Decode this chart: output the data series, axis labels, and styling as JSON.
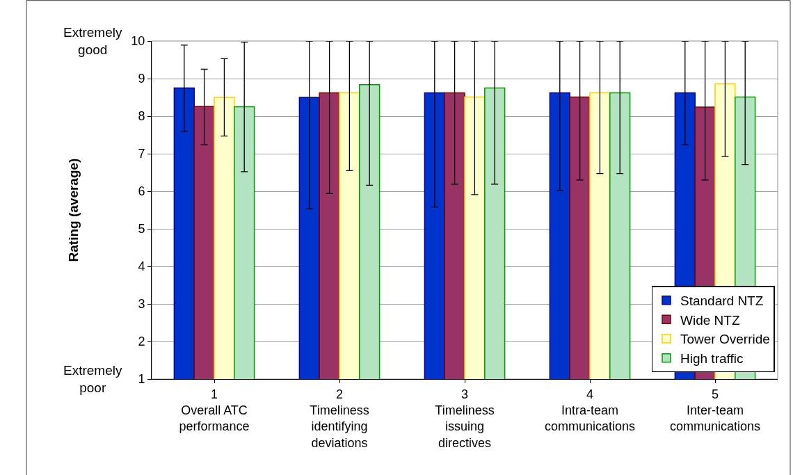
{
  "chart_data": {
    "type": "bar",
    "ylabel": "Rating (average)",
    "categories": [
      "1\nOverall ATC\nperformance",
      "2\nTimeliness\nidentifying\ndeviations",
      "3\nTimeliness\nissuing\ndirectives",
      "4\nIntra-team\ncommunications",
      "5\nInter-team\ncommunications"
    ],
    "series": [
      {
        "name": "Standard NTZ",
        "color": "#0033cc",
        "values": [
          8.75,
          8.5,
          8.62,
          8.62,
          8.62
        ],
        "errors": [
          [
            7.6,
            9.89
          ],
          [
            5.53,
            10
          ],
          [
            5.58,
            10
          ],
          [
            6.02,
            10
          ],
          [
            7.24,
            10
          ]
        ]
      },
      {
        "name": "Wide NTZ",
        "color": "#993366",
        "values": [
          8.26,
          8.62,
          8.62,
          8.51,
          8.24
        ],
        "errors": [
          [
            7.24,
            9.25
          ],
          [
            5.94,
            10
          ],
          [
            6.19,
            10
          ],
          [
            6.3,
            10
          ],
          [
            6.3,
            10
          ]
        ]
      },
      {
        "name": "Tower Override",
        "color": "#ffffcc",
        "values": [
          8.5,
          8.62,
          8.51,
          8.62,
          8.86
        ],
        "errors": [
          [
            7.47,
            9.53
          ],
          [
            6.55,
            10
          ],
          [
            5.91,
            10
          ],
          [
            6.47,
            10
          ],
          [
            6.93,
            10
          ]
        ]
      },
      {
        "name": "High traffic",
        "color": "#b3e3c0",
        "values": [
          8.25,
          8.84,
          8.75,
          8.62,
          8.51
        ],
        "errors": [
          [
            6.52,
            9.97
          ],
          [
            6.16,
            10
          ],
          [
            6.19,
            10
          ],
          [
            6.47,
            10
          ],
          [
            6.71,
            10
          ]
        ]
      }
    ],
    "ylim": [
      1,
      10
    ],
    "yticks": [
      1,
      2,
      3,
      4,
      5,
      6,
      7,
      8,
      9,
      10
    ],
    "grid": "y",
    "legend": "bottom right",
    "annotations": [
      "Extremely\ngood",
      "Extremely\npoor"
    ]
  }
}
